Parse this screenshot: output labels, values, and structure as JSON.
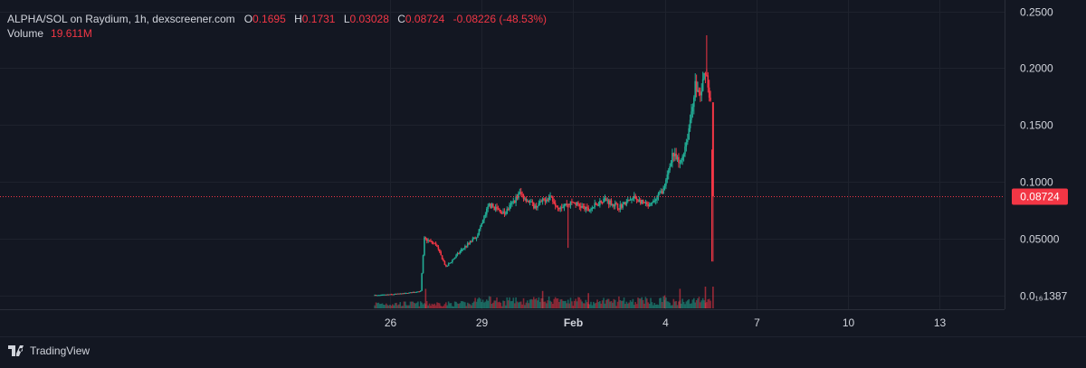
{
  "legend": {
    "symbol": "ALPHA/SOL on Raydium, 1h, dexscreener.com",
    "open_label": "O",
    "open": "0.1695",
    "high_label": "H",
    "high": "0.1731",
    "low_label": "L",
    "low": "0.03028",
    "close_label": "C",
    "close": "0.08724",
    "change": "-0.08226 (-48.53%)",
    "volume_label": "Volume",
    "volume": "19.611M"
  },
  "brand": {
    "name": "TradingView",
    "logo_icon": "tradingview-logo-icon"
  },
  "colors": {
    "background": "#131722",
    "grid": "#1e222d",
    "text": "#d1d4dc",
    "up": "#22ab94",
    "down": "#f23645",
    "price_line": "#f23645"
  },
  "chart_data": {
    "type": "candlestick",
    "interval": "1h",
    "x_tick_labels": [
      "26",
      "29",
      "Feb",
      "4",
      "7",
      "10",
      "13"
    ],
    "y_tick_labels": [
      "0.2500",
      "0.2000",
      "0.1500",
      "0.1000",
      "0.05000",
      "0.0₁₆1387"
    ],
    "y_tick_values": [
      0.25,
      0.2,
      0.15,
      0.1,
      0.05,
      0.0
    ],
    "ylim": [
      -0.012,
      0.26
    ],
    "last_price": 0.08724,
    "last_price_label": "0.08724",
    "grid": true,
    "price_path": [
      {
        "date": "Jan 25 12:00",
        "price": 0.0
      },
      {
        "date": "Jan 26 12:00",
        "price": 0.002
      },
      {
        "date": "Jan 27 00:00",
        "price": 0.004
      },
      {
        "date": "Jan 27 03:00",
        "price": 0.05
      },
      {
        "date": "Jan 27 12:00",
        "price": 0.045
      },
      {
        "date": "Jan 27 20:00",
        "price": 0.025
      },
      {
        "date": "Jan 28 08:00",
        "price": 0.04
      },
      {
        "date": "Jan 28 20:00",
        "price": 0.052
      },
      {
        "date": "Jan 29 06:00",
        "price": 0.08
      },
      {
        "date": "Jan 29 18:00",
        "price": 0.072
      },
      {
        "date": "Jan 30 06:00",
        "price": 0.09
      },
      {
        "date": "Jan 30 18:00",
        "price": 0.078
      },
      {
        "date": "Jan 31 06:00",
        "price": 0.088
      },
      {
        "date": "Jan 31 12:00",
        "price": 0.078
      },
      {
        "date": "Feb 1 00:00",
        "price": 0.082
      },
      {
        "date": "Feb 1 12:00",
        "price": 0.075
      },
      {
        "date": "Feb 2 00:00",
        "price": 0.085
      },
      {
        "date": "Feb 2 12:00",
        "price": 0.078
      },
      {
        "date": "Feb 3 00:00",
        "price": 0.086
      },
      {
        "date": "Feb 3 12:00",
        "price": 0.078
      },
      {
        "date": "Feb 4 00:00",
        "price": 0.095
      },
      {
        "date": "Feb 4 06:00",
        "price": 0.125
      },
      {
        "date": "Feb 4 12:00",
        "price": 0.115
      },
      {
        "date": "Feb 4 18:00",
        "price": 0.14
      },
      {
        "date": "Feb 5 00:00",
        "price": 0.185
      },
      {
        "date": "Feb 5 04:00",
        "price": 0.175
      },
      {
        "date": "Feb 5 08:00",
        "price": 0.2
      },
      {
        "date": "Feb 5 12:00",
        "price": 0.17
      },
      {
        "date": "Feb 5 14:00",
        "price": 0.087
      }
    ],
    "dip_candles": [
      {
        "date": "Jan 31 20:00",
        "low": 0.042
      },
      {
        "date": "Feb 5 13:00",
        "low": 0.03
      }
    ],
    "max_high": {
      "date": "Feb 5 09:00",
      "high": 0.229
    },
    "volume_spikes": [
      {
        "date": "Jan 27 04:00",
        "volume": 0.9
      },
      {
        "date": "Jan 31 00:00",
        "volume": 0.8
      },
      {
        "date": "Feb 1 12:00",
        "volume": 0.7
      },
      {
        "date": "Feb 4 00:00",
        "volume": 0.6
      },
      {
        "date": "Feb 4 12:00",
        "volume": 0.9
      },
      {
        "date": "Feb 5 08:00",
        "volume": 1.0
      },
      {
        "date": "Feb 5 14:00",
        "volume": 1.0
      }
    ]
  }
}
